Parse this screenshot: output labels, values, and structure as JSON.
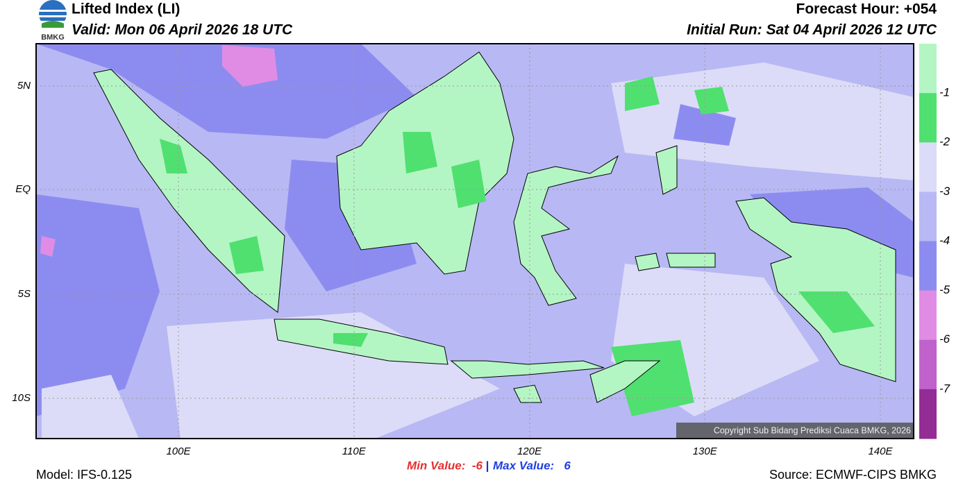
{
  "header": {
    "title": "Lifted Index (LI)",
    "valid": "Valid: Mon 06 April 2026 18 UTC",
    "forecast_hour": "Forecast Hour: +054",
    "initial_run": "Initial Run: Sat 04 April 2026 12 UTC",
    "logo_text": "BMKG"
  },
  "map": {
    "lat_labels": [
      "5N",
      "EQ",
      "5S",
      "10S"
    ],
    "lon_labels": [
      "100E",
      "110E",
      "120E",
      "130E",
      "140E"
    ],
    "copyright": "Copyright Sub Bidang Prediksi Cuaca BMKG, 2026"
  },
  "colorbar": {
    "labels": [
      "-1",
      "-2",
      "-3",
      "-4",
      "-5",
      "-6",
      "-7"
    ],
    "colors": [
      "#b4f5c4",
      "#50e070",
      "#dcdcf8",
      "#b8b8f4",
      "#8c8cf0",
      "#e08ce4",
      "#c062cc",
      "#942c96"
    ]
  },
  "footer": {
    "model": "Model: IFS-0.125",
    "min_value": "Min Value:  -6",
    "separator": "|",
    "max_value": "Max Value:   6",
    "source": "Source: ECMWF-CIPS BMKG"
  }
}
